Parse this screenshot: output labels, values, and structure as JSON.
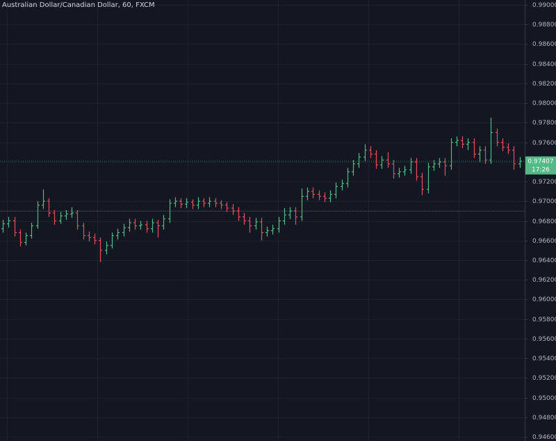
{
  "chart_data": {
    "type": "ohlc",
    "title": "Australian Dollar/Canadian Dollar, 60, FXCM",
    "up_color": "#53b987",
    "down_color": "#eb4d5c",
    "open": [
      0.9672,
      0.9677,
      0.968,
      0.9668,
      0.9658,
      0.9665,
      0.9675,
      0.9696,
      0.97,
      0.9688,
      0.968,
      0.9685,
      0.9687,
      0.9688,
      0.9675,
      0.9665,
      0.9663,
      0.966,
      0.965,
      0.9655,
      0.9665,
      0.9668,
      0.9673,
      0.9678,
      0.9675,
      0.9676,
      0.9672,
      0.9678,
      0.9675,
      0.9682,
      0.9698,
      0.97,
      0.9697,
      0.9699,
      0.9696,
      0.97,
      0.9698,
      0.97,
      0.9698,
      0.9696,
      0.9693,
      0.969,
      0.9684,
      0.968,
      0.9675,
      0.9679,
      0.9668,
      0.967,
      0.9672,
      0.968,
      0.9686,
      0.969,
      0.9684,
      0.9705,
      0.971,
      0.9707,
      0.9705,
      0.9703,
      0.9707,
      0.9715,
      0.9718,
      0.973,
      0.9738,
      0.9745,
      0.9752,
      0.9748,
      0.9737,
      0.9742,
      0.9738,
      0.9728,
      0.973,
      0.9732,
      0.974,
      0.9725,
      0.9712,
      0.9735,
      0.9738,
      0.974,
      0.9736,
      0.976,
      0.9762,
      0.9758,
      0.976,
      0.9748,
      0.9752,
      0.9742,
      0.977,
      0.976,
      0.9755,
      0.9752,
      0.9738
    ],
    "high": [
      0.9681,
      0.9684,
      0.9684,
      0.9671,
      0.9668,
      0.9678,
      0.97,
      0.9712,
      0.9703,
      0.9691,
      0.9689,
      0.9691,
      0.9694,
      0.9691,
      0.9678,
      0.9669,
      0.9667,
      0.9663,
      0.9659,
      0.9668,
      0.9672,
      0.9677,
      0.9682,
      0.9682,
      0.968,
      0.968,
      0.9682,
      0.9681,
      0.9686,
      0.9702,
      0.9704,
      0.9703,
      0.9703,
      0.9702,
      0.9704,
      0.9703,
      0.9704,
      0.9703,
      0.9701,
      0.9699,
      0.9697,
      0.9694,
      0.9688,
      0.9684,
      0.9683,
      0.9683,
      0.9674,
      0.9676,
      0.9684,
      0.9693,
      0.9694,
      0.9694,
      0.9713,
      0.9714,
      0.9714,
      0.9711,
      0.9709,
      0.9711,
      0.9719,
      0.9722,
      0.9734,
      0.9742,
      0.9749,
      0.9758,
      0.9756,
      0.9752,
      0.9746,
      0.975,
      0.9742,
      0.9734,
      0.9736,
      0.9744,
      0.9744,
      0.9729,
      0.9739,
      0.9742,
      0.9744,
      0.9744,
      0.9764,
      0.9766,
      0.9766,
      0.9764,
      0.9764,
      0.9756,
      0.9756,
      0.9785,
      0.9774,
      0.9764,
      0.9759,
      0.9756,
      0.9745
    ],
    "low": [
      0.9668,
      0.9673,
      0.9664,
      0.9654,
      0.9655,
      0.9662,
      0.9672,
      0.9692,
      0.9684,
      0.9676,
      0.9677,
      0.9681,
      0.9683,
      0.9671,
      0.9661,
      0.9659,
      0.9656,
      0.9638,
      0.9646,
      0.9652,
      0.9661,
      0.9664,
      0.9669,
      0.9671,
      0.9671,
      0.9668,
      0.9668,
      0.9663,
      0.9671,
      0.9678,
      0.9694,
      0.9693,
      0.9693,
      0.9692,
      0.9692,
      0.9694,
      0.9694,
      0.9694,
      0.9692,
      0.9689,
      0.9686,
      0.968,
      0.9676,
      0.9668,
      0.9671,
      0.966,
      0.9664,
      0.9666,
      0.9668,
      0.9676,
      0.9682,
      0.9676,
      0.968,
      0.9701,
      0.9703,
      0.9701,
      0.9699,
      0.9699,
      0.9703,
      0.9711,
      0.9714,
      0.9726,
      0.9734,
      0.9741,
      0.9744,
      0.9733,
      0.9733,
      0.9734,
      0.9723,
      0.9724,
      0.9726,
      0.9728,
      0.9721,
      0.9706,
      0.9708,
      0.9731,
      0.9734,
      0.9726,
      0.9732,
      0.9756,
      0.9754,
      0.9752,
      0.9744,
      0.974,
      0.9738,
      0.9738,
      0.9756,
      0.9751,
      0.9748,
      0.9732,
      0.9734
    ],
    "close": [
      0.9677,
      0.968,
      0.9668,
      0.9658,
      0.9665,
      0.9675,
      0.9696,
      0.97,
      0.9688,
      0.968,
      0.9685,
      0.9687,
      0.9688,
      0.9675,
      0.9665,
      0.9663,
      0.966,
      0.965,
      0.9655,
      0.9665,
      0.9668,
      0.9673,
      0.9678,
      0.9675,
      0.9676,
      0.9672,
      0.9678,
      0.9675,
      0.9682,
      0.9698,
      0.97,
      0.9697,
      0.9699,
      0.9696,
      0.97,
      0.9698,
      0.97,
      0.9698,
      0.9696,
      0.9693,
      0.969,
      0.9684,
      0.968,
      0.9675,
      0.9679,
      0.9668,
      0.967,
      0.9672,
      0.968,
      0.9686,
      0.969,
      0.9684,
      0.9705,
      0.971,
      0.9707,
      0.9705,
      0.9703,
      0.9707,
      0.9715,
      0.9718,
      0.973,
      0.9738,
      0.9745,
      0.9752,
      0.9748,
      0.9737,
      0.9742,
      0.9738,
      0.9728,
      0.973,
      0.9732,
      0.974,
      0.9725,
      0.9712,
      0.9735,
      0.9738,
      0.974,
      0.9736,
      0.976,
      0.9762,
      0.9758,
      0.976,
      0.9748,
      0.9752,
      0.9742,
      0.977,
      0.976,
      0.9755,
      0.9752,
      0.9738,
      0.97407
    ],
    "countdown": "17:26",
    "reference_line": 0.969,
    "ylim": [
      0.946,
      0.99
    ],
    "yticks": [
      {
        "value": 0.99,
        "label": "0.99000"
      },
      {
        "value": 0.988,
        "label": "0.98800"
      },
      {
        "value": 0.986,
        "label": "0.98600"
      },
      {
        "value": 0.984,
        "label": "0.98400"
      },
      {
        "value": 0.982,
        "label": "0.98200"
      },
      {
        "value": 0.98,
        "label": "0.98000"
      },
      {
        "value": 0.978,
        "label": "0.97800"
      },
      {
        "value": 0.976,
        "label": "0.97600"
      },
      {
        "value": 0.974,
        "label": "0.97400"
      },
      {
        "value": 0.972,
        "label": "0.97200"
      },
      {
        "value": 0.97,
        "label": "0.97000"
      },
      {
        "value": 0.968,
        "label": "0.96800"
      },
      {
        "value": 0.966,
        "label": "0.96600"
      },
      {
        "value": 0.964,
        "label": "0.96400"
      },
      {
        "value": 0.962,
        "label": "0.96200"
      },
      {
        "value": 0.96,
        "label": "0.96000"
      },
      {
        "value": 0.958,
        "label": "0.95800"
      },
      {
        "value": 0.956,
        "label": "0.95600"
      },
      {
        "value": 0.954,
        "label": "0.95400"
      },
      {
        "value": 0.952,
        "label": "0.95200"
      },
      {
        "value": 0.95,
        "label": "0.95000"
      },
      {
        "value": 0.948,
        "label": "0.94800"
      },
      {
        "value": 0.946,
        "label": "0.94600"
      }
    ],
    "grid": true
  }
}
